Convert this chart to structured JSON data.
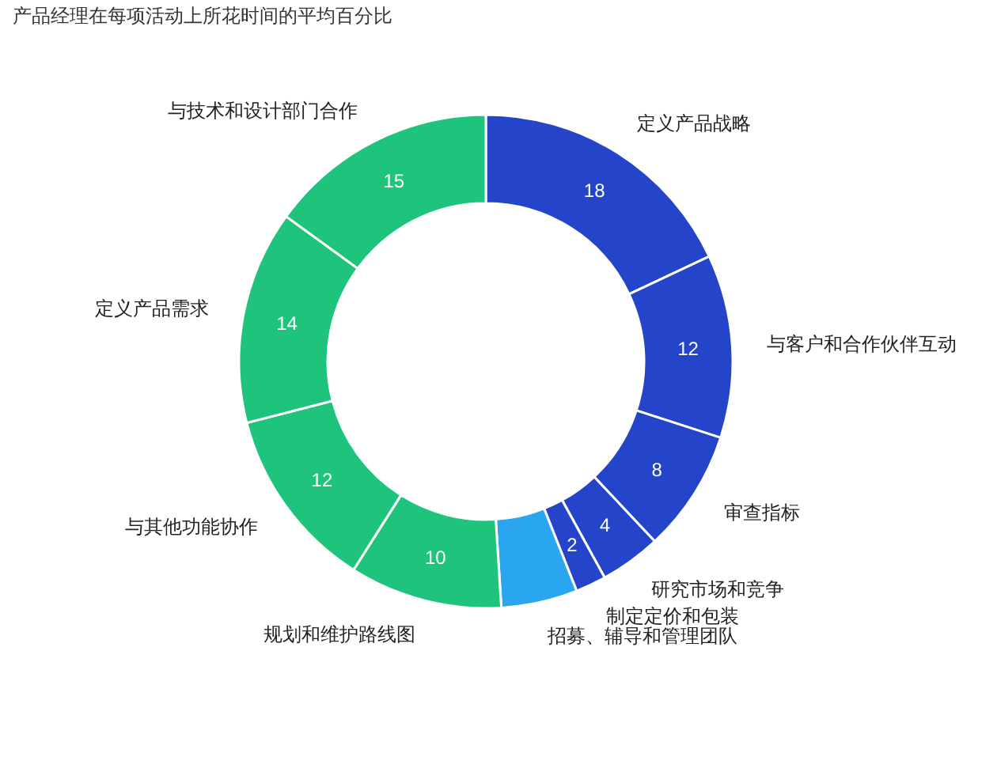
{
  "chart_data": {
    "type": "donut",
    "title": "产品经理在每项活动上所花时间的平均百分比",
    "categories": [
      "定义产品战略",
      "与客户和合作伙伴互动",
      "审查指标",
      "研究市场和竞争",
      "制定定价和包装",
      "招募、辅导和管理团队",
      "规划和维护路线图",
      "与其他功能协作",
      "定义产品需求",
      "与技术和设计部门合作"
    ],
    "values": [
      18,
      12,
      8,
      4,
      2,
      5,
      10,
      12,
      14,
      15
    ],
    "value_labels": [
      "18",
      "12",
      "8",
      "4",
      "2",
      null,
      "10",
      "12",
      "14",
      "15"
    ],
    "colors": [
      "#2445c9",
      "#2445c9",
      "#2445c9",
      "#2445c9",
      "#2445c9",
      "#2aa6f0",
      "#1ec47c",
      "#1ec47c",
      "#1ec47c",
      "#1ec47c"
    ],
    "legend": false
  }
}
